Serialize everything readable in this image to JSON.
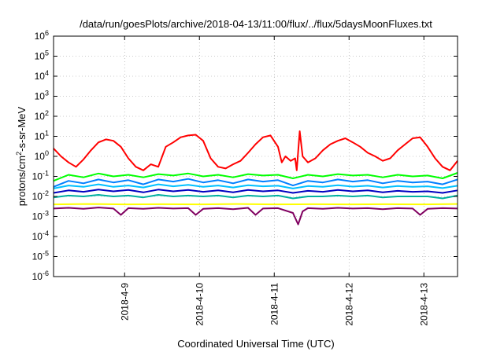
{
  "chart_data": {
    "type": "line",
    "title": "/data/run/goesPlots/archive/2018-04-13/11:00/flux/../flux/5daysMoonFluxes.txt",
    "xlabel": "Coordinated Universal Time (UTC)",
    "ylabel": {
      "pre": "protons/cm",
      "sup": "2",
      "post": "-s-sr-MeV"
    },
    "yscale": "log",
    "ylim_exp": [
      -6,
      6
    ],
    "y_tick_exponents": [
      6,
      5,
      4,
      3,
      2,
      1,
      0,
      -1,
      -2,
      -3,
      -4,
      -5,
      -6
    ],
    "y_tick_base": "10",
    "xlim_days": [
      -0.95,
      4.45
    ],
    "x_ticks": [
      {
        "label": "2018-4-9",
        "day": 0
      },
      {
        "label": "2018-4-10",
        "day": 1
      },
      {
        "label": "2018-4-11",
        "day": 2
      },
      {
        "label": "2018-4-12",
        "day": 3
      },
      {
        "label": "2018-4-13",
        "day": 4
      }
    ],
    "grid": true,
    "legend": "none",
    "series": [
      {
        "color": "#ff0000",
        "values": [
          [
            -0.95,
            2.5
          ],
          [
            -0.85,
            1.0
          ],
          [
            -0.75,
            0.5
          ],
          [
            -0.65,
            0.3
          ],
          [
            -0.55,
            0.7
          ],
          [
            -0.45,
            2.0
          ],
          [
            -0.35,
            5.0
          ],
          [
            -0.25,
            7.0
          ],
          [
            -0.15,
            6.0
          ],
          [
            -0.05,
            3.0
          ],
          [
            0.05,
            0.8
          ],
          [
            0.15,
            0.3
          ],
          [
            0.25,
            0.2
          ],
          [
            0.35,
            0.4
          ],
          [
            0.45,
            0.3
          ],
          [
            0.55,
            3.0
          ],
          [
            0.65,
            5.0
          ],
          [
            0.75,
            9.0
          ],
          [
            0.85,
            11.0
          ],
          [
            0.95,
            12.0
          ],
          [
            1.05,
            6.0
          ],
          [
            1.15,
            0.8
          ],
          [
            1.25,
            0.3
          ],
          [
            1.35,
            0.25
          ],
          [
            1.45,
            0.4
          ],
          [
            1.55,
            0.6
          ],
          [
            1.65,
            1.5
          ],
          [
            1.75,
            4.0
          ],
          [
            1.85,
            9.0
          ],
          [
            1.95,
            11.0
          ],
          [
            2.05,
            3.0
          ],
          [
            2.1,
            0.5
          ],
          [
            2.15,
            1.0
          ],
          [
            2.22,
            0.6
          ],
          [
            2.28,
            0.8
          ],
          [
            2.3,
            0.2
          ],
          [
            2.34,
            18.0
          ],
          [
            2.38,
            1.0
          ],
          [
            2.45,
            0.5
          ],
          [
            2.55,
            0.8
          ],
          [
            2.65,
            2.0
          ],
          [
            2.75,
            4.0
          ],
          [
            2.85,
            6.0
          ],
          [
            2.95,
            8.0
          ],
          [
            3.05,
            5.0
          ],
          [
            3.15,
            3.0
          ],
          [
            3.25,
            1.5
          ],
          [
            3.35,
            1.0
          ],
          [
            3.45,
            0.6
          ],
          [
            3.55,
            0.8
          ],
          [
            3.65,
            2.0
          ],
          [
            3.75,
            4.0
          ],
          [
            3.85,
            8.0
          ],
          [
            3.95,
            9.0
          ],
          [
            4.05,
            3.0
          ],
          [
            4.15,
            0.8
          ],
          [
            4.25,
            0.3
          ],
          [
            4.35,
            0.2
          ],
          [
            4.45,
            0.6
          ]
        ]
      },
      {
        "color": "#00ff00",
        "values": [
          [
            -0.95,
            0.06
          ],
          [
            -0.75,
            0.12
          ],
          [
            -0.55,
            0.09
          ],
          [
            -0.35,
            0.14
          ],
          [
            -0.15,
            0.1
          ],
          [
            0.05,
            0.12
          ],
          [
            0.25,
            0.09
          ],
          [
            0.45,
            0.13
          ],
          [
            0.65,
            0.11
          ],
          [
            0.85,
            0.14
          ],
          [
            1.05,
            0.1
          ],
          [
            1.25,
            0.12
          ],
          [
            1.45,
            0.09
          ],
          [
            1.65,
            0.13
          ],
          [
            1.85,
            0.11
          ],
          [
            2.05,
            0.12
          ],
          [
            2.25,
            0.08
          ],
          [
            2.45,
            0.12
          ],
          [
            2.65,
            0.1
          ],
          [
            2.85,
            0.13
          ],
          [
            3.05,
            0.11
          ],
          [
            3.25,
            0.12
          ],
          [
            3.45,
            0.09
          ],
          [
            3.65,
            0.12
          ],
          [
            3.85,
            0.1
          ],
          [
            4.05,
            0.11
          ],
          [
            4.25,
            0.08
          ],
          [
            4.45,
            0.15
          ]
        ]
      },
      {
        "color": "#0080ff",
        "values": [
          [
            -0.95,
            0.03
          ],
          [
            -0.75,
            0.06
          ],
          [
            -0.55,
            0.045
          ],
          [
            -0.35,
            0.07
          ],
          [
            -0.15,
            0.05
          ],
          [
            0.05,
            0.065
          ],
          [
            0.25,
            0.04
          ],
          [
            0.45,
            0.07
          ],
          [
            0.65,
            0.055
          ],
          [
            0.85,
            0.075
          ],
          [
            1.05,
            0.05
          ],
          [
            1.25,
            0.065
          ],
          [
            1.45,
            0.045
          ],
          [
            1.65,
            0.07
          ],
          [
            1.85,
            0.055
          ],
          [
            2.05,
            0.065
          ],
          [
            2.25,
            0.035
          ],
          [
            2.45,
            0.06
          ],
          [
            2.65,
            0.05
          ],
          [
            2.85,
            0.07
          ],
          [
            3.05,
            0.055
          ],
          [
            3.25,
            0.065
          ],
          [
            3.45,
            0.045
          ],
          [
            3.65,
            0.06
          ],
          [
            3.85,
            0.05
          ],
          [
            4.05,
            0.055
          ],
          [
            4.25,
            0.04
          ],
          [
            4.45,
            0.07
          ]
        ]
      },
      {
        "color": "#00c0ff",
        "values": [
          [
            -0.95,
            0.025
          ],
          [
            -0.75,
            0.035
          ],
          [
            -0.55,
            0.03
          ],
          [
            -0.35,
            0.04
          ],
          [
            -0.15,
            0.03
          ],
          [
            0.05,
            0.035
          ],
          [
            0.25,
            0.028
          ],
          [
            0.45,
            0.04
          ],
          [
            0.65,
            0.032
          ],
          [
            0.85,
            0.038
          ],
          [
            1.05,
            0.03
          ],
          [
            1.25,
            0.035
          ],
          [
            1.45,
            0.028
          ],
          [
            1.65,
            0.036
          ],
          [
            1.85,
            0.032
          ],
          [
            2.05,
            0.034
          ],
          [
            2.25,
            0.025
          ],
          [
            2.45,
            0.033
          ],
          [
            2.65,
            0.03
          ],
          [
            2.85,
            0.036
          ],
          [
            3.05,
            0.031
          ],
          [
            3.25,
            0.034
          ],
          [
            3.45,
            0.028
          ],
          [
            3.65,
            0.033
          ],
          [
            3.85,
            0.03
          ],
          [
            4.05,
            0.032
          ],
          [
            4.25,
            0.026
          ],
          [
            4.45,
            0.034
          ]
        ]
      },
      {
        "color": "#0000c0",
        "values": [
          [
            -0.95,
            0.015
          ],
          [
            -0.75,
            0.02
          ],
          [
            -0.55,
            0.017
          ],
          [
            -0.35,
            0.022
          ],
          [
            -0.15,
            0.018
          ],
          [
            0.05,
            0.021
          ],
          [
            0.25,
            0.016
          ],
          [
            0.45,
            0.022
          ],
          [
            0.65,
            0.018
          ],
          [
            0.85,
            0.021
          ],
          [
            1.05,
            0.017
          ],
          [
            1.25,
            0.02
          ],
          [
            1.45,
            0.016
          ],
          [
            1.65,
            0.021
          ],
          [
            1.85,
            0.018
          ],
          [
            2.05,
            0.02
          ],
          [
            2.25,
            0.015
          ],
          [
            2.45,
            0.019
          ],
          [
            2.65,
            0.017
          ],
          [
            2.85,
            0.021
          ],
          [
            3.05,
            0.018
          ],
          [
            3.25,
            0.02
          ],
          [
            3.45,
            0.016
          ],
          [
            3.65,
            0.019
          ],
          [
            3.85,
            0.017
          ],
          [
            4.05,
            0.018
          ],
          [
            4.25,
            0.015
          ],
          [
            4.45,
            0.02
          ]
        ]
      },
      {
        "color": "#00b0a0",
        "values": [
          [
            -0.95,
            0.009
          ],
          [
            -0.75,
            0.011
          ],
          [
            -0.55,
            0.01
          ],
          [
            -0.35,
            0.012
          ],
          [
            -0.15,
            0.01
          ],
          [
            0.05,
            0.011
          ],
          [
            0.25,
            0.009
          ],
          [
            0.45,
            0.012
          ],
          [
            0.65,
            0.01
          ],
          [
            0.85,
            0.011
          ],
          [
            1.05,
            0.01
          ],
          [
            1.25,
            0.011
          ],
          [
            1.45,
            0.009
          ],
          [
            1.65,
            0.011
          ],
          [
            1.85,
            0.01
          ],
          [
            2.05,
            0.011
          ],
          [
            2.25,
            0.008
          ],
          [
            2.45,
            0.01
          ],
          [
            2.65,
            0.01
          ],
          [
            2.85,
            0.011
          ],
          [
            3.05,
            0.01
          ],
          [
            3.25,
            0.011
          ],
          [
            3.45,
            0.009
          ],
          [
            3.65,
            0.01
          ],
          [
            3.85,
            0.01
          ],
          [
            4.05,
            0.01
          ],
          [
            4.25,
            0.008
          ],
          [
            4.45,
            0.011
          ]
        ]
      },
      {
        "color": "#ffff00",
        "values": [
          [
            -0.95,
            0.004
          ],
          [
            -0.5,
            0.0042
          ],
          [
            0.0,
            0.004
          ],
          [
            0.5,
            0.0041
          ],
          [
            1.0,
            0.004
          ],
          [
            1.5,
            0.0042
          ],
          [
            2.0,
            0.004
          ],
          [
            2.5,
            0.0041
          ],
          [
            3.0,
            0.004
          ],
          [
            3.5,
            0.0041
          ],
          [
            4.0,
            0.004
          ],
          [
            4.45,
            0.0042
          ]
        ]
      },
      {
        "color": "#800060",
        "values": [
          [
            -0.95,
            0.0025
          ],
          [
            -0.75,
            0.0027
          ],
          [
            -0.55,
            0.0024
          ],
          [
            -0.35,
            0.0028
          ],
          [
            -0.15,
            0.0025
          ],
          [
            -0.05,
            0.0012
          ],
          [
            0.05,
            0.0026
          ],
          [
            0.25,
            0.0024
          ],
          [
            0.45,
            0.0027
          ],
          [
            0.65,
            0.0025
          ],
          [
            0.85,
            0.0026
          ],
          [
            0.95,
            0.0012
          ],
          [
            1.05,
            0.0024
          ],
          [
            1.25,
            0.0026
          ],
          [
            1.45,
            0.0023
          ],
          [
            1.65,
            0.0027
          ],
          [
            1.75,
            0.0012
          ],
          [
            1.85,
            0.0025
          ],
          [
            2.05,
            0.0026
          ],
          [
            2.25,
            0.0015
          ],
          [
            2.32,
            0.0004
          ],
          [
            2.38,
            0.0018
          ],
          [
            2.45,
            0.0026
          ],
          [
            2.65,
            0.0024
          ],
          [
            2.85,
            0.0027
          ],
          [
            3.05,
            0.0025
          ],
          [
            3.25,
            0.0026
          ],
          [
            3.45,
            0.0023
          ],
          [
            3.65,
            0.0026
          ],
          [
            3.85,
            0.0025
          ],
          [
            3.95,
            0.0012
          ],
          [
            4.05,
            0.0024
          ],
          [
            4.25,
            0.0026
          ],
          [
            4.45,
            0.0025
          ]
        ]
      }
    ]
  }
}
